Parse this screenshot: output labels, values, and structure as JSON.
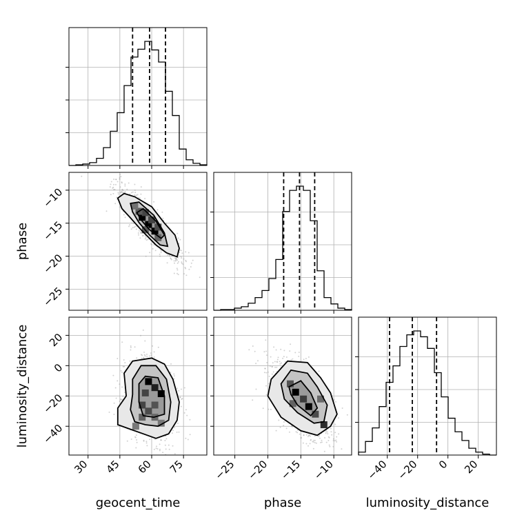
{
  "chart_data": {
    "type": "corner",
    "parameters": [
      "geocent_time",
      "phase",
      "luminosity_distance"
    ],
    "axis_limits": {
      "geocent_time": [
        21,
        86
      ],
      "phase": [
        -28.2,
        -7.3
      ],
      "luminosity_distance": [
        -59,
        32
      ]
    },
    "ticks": {
      "geocent_time": [
        30,
        45,
        60,
        75
      ],
      "phase": [
        -25,
        -20,
        -15,
        -10
      ],
      "luminosity_distance": [
        -40,
        -20,
        0,
        20
      ]
    },
    "ticks_y": {
      "phase": [
        -10,
        -15,
        -20,
        -25
      ],
      "luminosity_distance": [
        20,
        0,
        -20,
        -40
      ]
    },
    "tick_labels": {
      "geocent_time": [
        "30",
        "45",
        "60",
        "75"
      ],
      "phase_x": [
        "−25",
        "−20",
        "−15",
        "−10"
      ],
      "phase_y": [
        "−10",
        "−15",
        "−20",
        "−25"
      ],
      "luminosity_distance_x": [
        "−40",
        "−20",
        "0",
        "20"
      ],
      "luminosity_distance_y": [
        "20",
        "0",
        "−20",
        "−40"
      ]
    },
    "grid": true,
    "histograms": {
      "geocent_time": {
        "edges": [
          21,
          24.25,
          27.5,
          30.75,
          34,
          37.25,
          40.5,
          43.75,
          47,
          50.25,
          53.5,
          56.75,
          60,
          63.25,
          66.5,
          69.75,
          73,
          76.25,
          79.5,
          82.75,
          86
        ],
        "counts": [
          0,
          1,
          2,
          4,
          10,
          25,
          48,
          74,
          112,
          152,
          163,
          174,
          162,
          145,
          104,
          70,
          23,
          8,
          3,
          1
        ],
        "quantiles": [
          51,
          59,
          66.5
        ]
      },
      "phase": {
        "edges": [
          -28.2,
          -27.155,
          -26.11,
          -25.065,
          -24.02,
          -22.975,
          -21.93,
          -20.885,
          -19.84,
          -18.795,
          -17.75,
          -16.705,
          -15.66,
          -14.615,
          -13.57,
          -12.525,
          -11.48,
          -10.435,
          -9.39,
          -8.345,
          -7.3
        ],
        "counts": [
          0,
          1,
          1,
          3,
          5,
          10,
          18,
          28,
          45,
          72,
          140,
          170,
          176,
          170,
          127,
          56,
          18,
          9,
          3,
          1
        ],
        "quantiles": [
          -17.6,
          -15.2,
          -12.9
        ]
      },
      "luminosity_distance": {
        "edges": [
          -59,
          -54.45,
          -49.9,
          -45.35,
          -40.8,
          -36.25,
          -31.7,
          -27.15,
          -22.6,
          -18.05,
          -13.5,
          -8.95,
          -4.4,
          0.15,
          4.7,
          9.25,
          13.8,
          18.35,
          22.9,
          27.45,
          32
        ],
        "counts": [
          3,
          14,
          28,
          50,
          75,
          92,
          112,
          124,
          128,
          122,
          110,
          85,
          60,
          38,
          24,
          15,
          7,
          3,
          1,
          0
        ],
        "quantiles": [
          -38.5,
          -23.5,
          -7.5
        ]
      }
    },
    "contours": {
      "phase_vs_geocent_time": {
        "levels": [
          [
            [
              44,
              -11.2
            ],
            [
              47,
              -10.5
            ],
            [
              52,
              -11
            ],
            [
              60,
              -12.5
            ],
            [
              66,
              -15
            ],
            [
              71,
              -16.8
            ],
            [
              73,
              -18.8
            ],
            [
              72,
              -20.1
            ],
            [
              67,
              -19.5
            ],
            [
              62,
              -18.3
            ],
            [
              55,
              -16
            ],
            [
              50,
              -14.2
            ],
            [
              46,
              -12.8
            ]
          ],
          [
            [
              50,
              -12
            ],
            [
              54,
              -11.8
            ],
            [
              61,
              -13.8
            ],
            [
              66,
              -16.5
            ],
            [
              67.5,
              -18.5
            ],
            [
              64,
              -18.3
            ],
            [
              59,
              -16.8
            ],
            [
              54,
              -14.9
            ],
            [
              51,
              -13.3
            ]
          ],
          [
            [
              53,
              -13.4
            ],
            [
              56,
              -12.8
            ],
            [
              62,
              -14.7
            ],
            [
              66,
              -16.8
            ],
            [
              64.5,
              -17.3
            ],
            [
              59,
              -16
            ],
            [
              55,
              -14.5
            ]
          ]
        ],
        "density_cells": [
          {
            "x": 55.5,
            "y": -14.1,
            "v": 1.0
          },
          {
            "x": 58.5,
            "y": -15.2,
            "v": 1.0
          },
          {
            "x": 61.5,
            "y": -16.2,
            "v": 1.0
          },
          {
            "x": 57,
            "y": -13.4,
            "v": 0.55
          },
          {
            "x": 54,
            "y": -13.2,
            "v": 0.4
          },
          {
            "x": 60,
            "y": -14.5,
            "v": 0.55
          },
          {
            "x": 63,
            "y": -15.6,
            "v": 0.5
          },
          {
            "x": 57,
            "y": -16.0,
            "v": 0.4
          },
          {
            "x": 63,
            "y": -17.2,
            "v": 0.35
          },
          {
            "x": 52,
            "y": -12.4,
            "v": 0.25
          }
        ]
      },
      "luminosity_distance_vs_geocent_time": {
        "levels": [
          [
            [
              47,
              -5
            ],
            [
              51,
              3
            ],
            [
              60,
              5
            ],
            [
              66,
              1
            ],
            [
              70,
              -9
            ],
            [
              73,
              -24
            ],
            [
              72,
              -36
            ],
            [
              68,
              -45
            ],
            [
              62,
              -48
            ],
            [
              56,
              -45
            ],
            [
              50,
              -42
            ],
            [
              44,
              -39
            ],
            [
              44,
              -28
            ],
            [
              48,
              -20
            ]
          ],
          [
            [
              51,
              -9
            ],
            [
              55,
              0
            ],
            [
              62,
              0
            ],
            [
              67,
              -9
            ],
            [
              69,
              -24
            ],
            [
              68,
              -36
            ],
            [
              63,
              -40
            ],
            [
              57,
              -39
            ],
            [
              52,
              -37
            ],
            [
              50,
              -29
            ],
            [
              51,
              -19
            ]
          ],
          [
            [
              54,
              -12
            ],
            [
              57,
              -7
            ],
            [
              63,
              -8
            ],
            [
              66,
              -20
            ],
            [
              66,
              -32
            ],
            [
              61,
              -34
            ],
            [
              56,
              -33
            ],
            [
              54,
              -24
            ]
          ]
        ],
        "density_cells": [
          {
            "x": 58.5,
            "y": -10.5,
            "v": 1.0
          },
          {
            "x": 61.5,
            "y": -14.5,
            "v": 0.8
          },
          {
            "x": 64.5,
            "y": -18.5,
            "v": 1.0
          },
          {
            "x": 57,
            "y": -18,
            "v": 0.55
          },
          {
            "x": 55.5,
            "y": -26,
            "v": 0.55
          },
          {
            "x": 58.5,
            "y": -30,
            "v": 0.5
          },
          {
            "x": 61.5,
            "y": -26,
            "v": 0.45
          },
          {
            "x": 55.5,
            "y": -34,
            "v": 0.35
          },
          {
            "x": 61.5,
            "y": -34,
            "v": 0.3
          },
          {
            "x": 52.5,
            "y": -40,
            "v": 0.2
          },
          {
            "x": 64.5,
            "y": -38,
            "v": 0.2
          }
        ]
      },
      "luminosity_distance_vs_phase": {
        "levels": [
          [
            [
              -19.5,
              -9
            ],
            [
              -17,
              3
            ],
            [
              -14,
              2
            ],
            [
              -12,
              -8
            ],
            [
              -10.5,
              -18
            ],
            [
              -9.5,
              -32
            ],
            [
              -10.5,
              -40
            ],
            [
              -12.5,
              -46
            ],
            [
              -15,
              -43
            ],
            [
              -18,
              -34
            ],
            [
              -20,
              -20
            ]
          ],
          [
            [
              -18,
              -12
            ],
            [
              -16.5,
              -3
            ],
            [
              -14,
              -5
            ],
            [
              -12.5,
              -14
            ],
            [
              -11,
              -26
            ],
            [
              -11.5,
              -37
            ],
            [
              -13,
              -38
            ],
            [
              -15.5,
              -31
            ],
            [
              -17.5,
              -22
            ]
          ],
          [
            [
              -16.8,
              -14
            ],
            [
              -15,
              -10
            ],
            [
              -13.5,
              -18
            ],
            [
              -12.5,
              -28
            ],
            [
              -13.5,
              -33
            ],
            [
              -15.5,
              -26
            ],
            [
              -16.5,
              -19
            ]
          ]
        ],
        "density_cells": [
          {
            "x": -15.8,
            "y": -17.5,
            "v": 1.0
          },
          {
            "x": -13.8,
            "y": -27,
            "v": 0.95
          },
          {
            "x": -11.5,
            "y": -39,
            "v": 0.7
          },
          {
            "x": -16.6,
            "y": -12,
            "v": 0.45
          },
          {
            "x": -14.6,
            "y": -22,
            "v": 0.6
          },
          {
            "x": -12.8,
            "y": -32,
            "v": 0.5
          },
          {
            "x": -16.2,
            "y": -25,
            "v": 0.35
          },
          {
            "x": -12,
            "y": -22,
            "v": 0.3
          }
        ]
      }
    }
  }
}
